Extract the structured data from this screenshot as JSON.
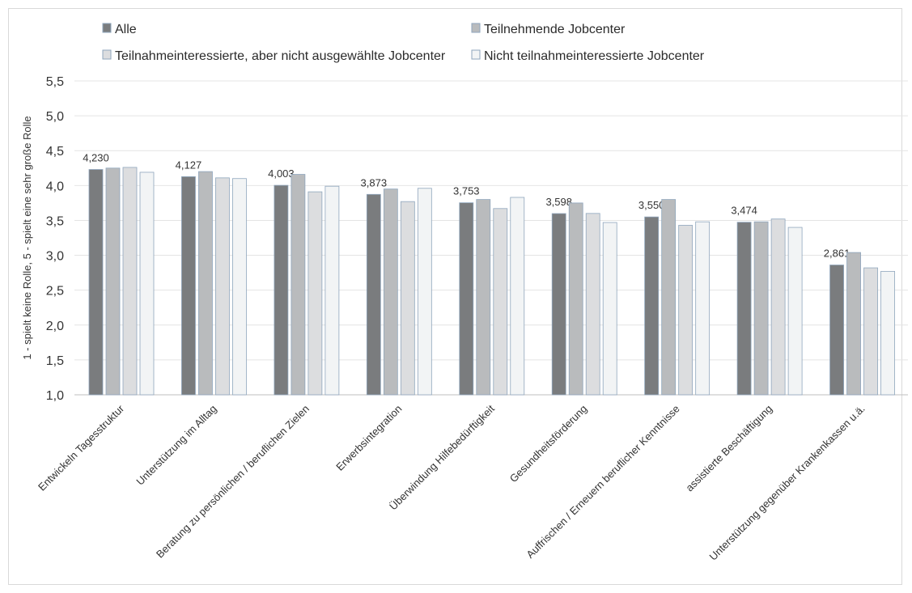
{
  "chart_data": {
    "type": "bar",
    "ylabel": "1 - spielt keine Rolle, 5 - spielt eine sehr große Rolle",
    "ylim": [
      1.0,
      5.5
    ],
    "yticks": [
      "1,0",
      "1,5",
      "2,0",
      "2,5",
      "3,0",
      "3,5",
      "4,0",
      "4,5",
      "5,0",
      "5,5"
    ],
    "grid": true,
    "legend_position": "top",
    "categories": [
      "Entwickeln Tagesstruktur",
      "Unterstützung im Alltag",
      "Beratung zu persönlichen / beruflichen Zielen",
      "Erwerbsintegration",
      "Überwindung Hilfebedürftigkeit",
      "Gesundheitsförderung",
      "Auffrischen / Erneuern beruflicher Kenntnisse",
      "assistierte Beschäftigung",
      "Unterstützung gegenüber Krankenkassen u.ä."
    ],
    "series": [
      {
        "name": "Alle",
        "color": "#7a7c7e",
        "values": [
          4.23,
          4.127,
          4.003,
          3.873,
          3.753,
          3.598,
          3.55,
          3.474,
          2.861
        ],
        "labels": [
          "4,230",
          "4,127",
          "4,003",
          "3,873",
          "3,753",
          "3,598",
          "3,550",
          "3,474",
          "2,861"
        ]
      },
      {
        "name": "Teilnehmende Jobcenter",
        "color": "#b9bbbd",
        "values": [
          4.25,
          4.2,
          4.16,
          3.95,
          3.8,
          3.75,
          3.8,
          3.48,
          3.04
        ]
      },
      {
        "name": "Teilnahmeinteressierte, aber nicht ausgewählte Jobcenter",
        "color": "#dcdddf",
        "values": [
          4.26,
          4.11,
          3.91,
          3.77,
          3.67,
          3.6,
          3.43,
          3.52,
          2.82
        ]
      },
      {
        "name": "Nicht teilnahmeinteressierte Jobcenter",
        "color": "#f2f4f5",
        "values": [
          4.19,
          4.1,
          3.99,
          3.96,
          3.83,
          3.47,
          3.48,
          3.4,
          2.77
        ]
      }
    ]
  }
}
